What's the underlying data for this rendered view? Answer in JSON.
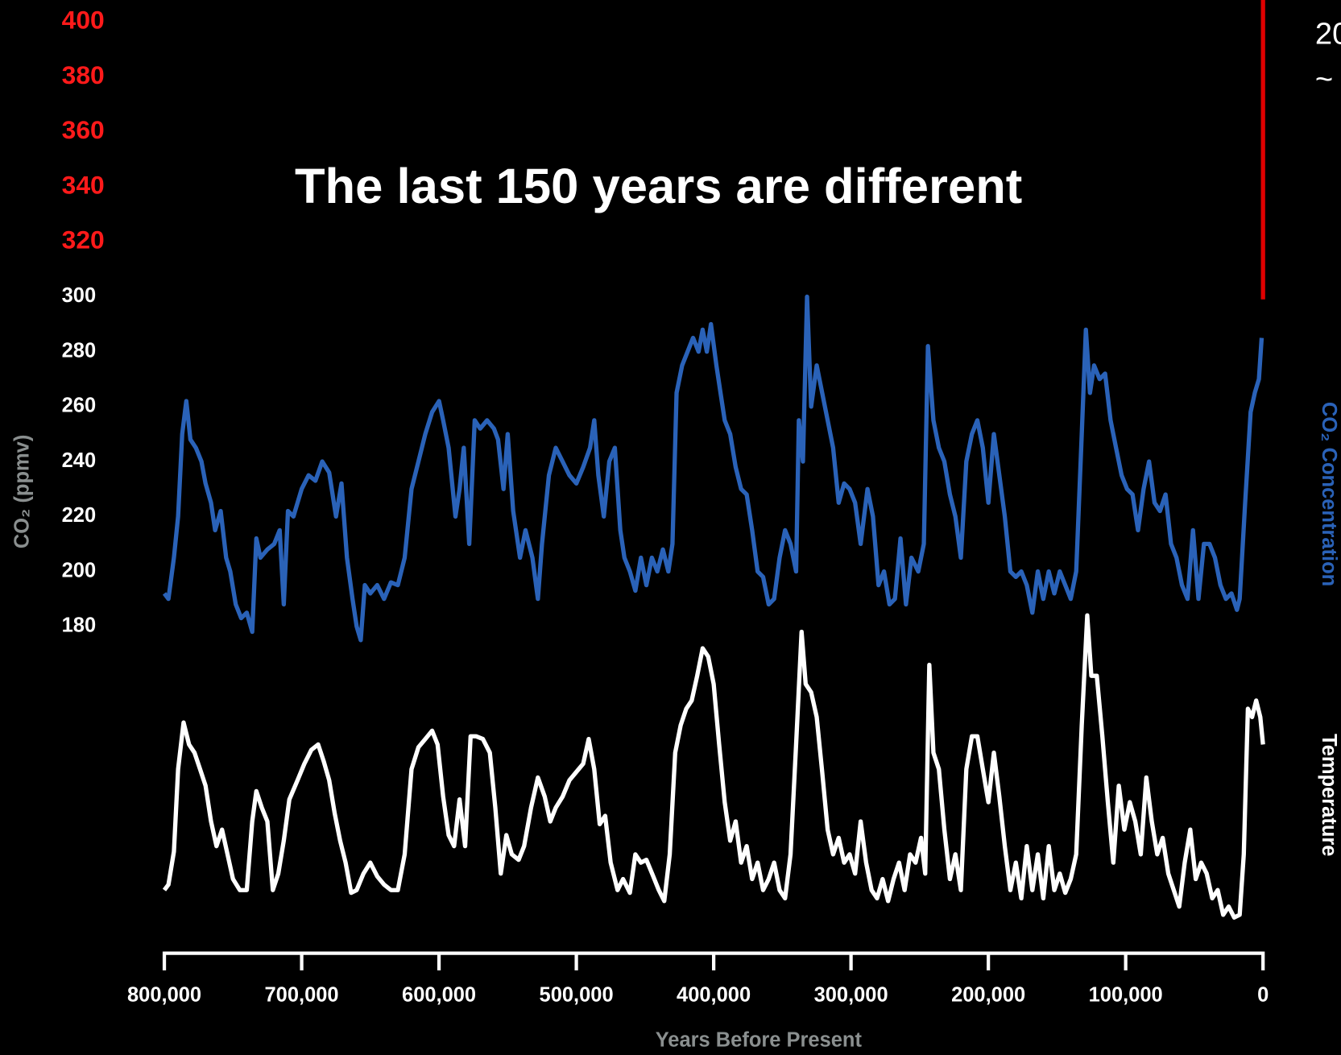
{
  "chart_data": {
    "type": "line",
    "title": "The last 150 years are different",
    "x_label": "Years Before Present",
    "y_label": "CO₂ (ppmv)",
    "xlim": [
      800000,
      0
    ],
    "ylim": [
      61,
      408
    ],
    "xticks": [
      {
        "value": 800000,
        "label": "800,000"
      },
      {
        "value": 700000,
        "label": "700,000"
      },
      {
        "value": 600000,
        "label": "600,000"
      },
      {
        "value": 500000,
        "label": "500,000"
      },
      {
        "value": 400000,
        "label": "400,000"
      },
      {
        "value": 300000,
        "label": "300,000"
      },
      {
        "value": 200000,
        "label": "200,000"
      },
      {
        "value": 100000,
        "label": "100,000"
      },
      0
    ],
    "yticks": [
      180,
      200,
      220,
      240,
      260,
      280,
      300,
      320,
      340,
      360,
      380,
      400
    ],
    "ytick_colors": [
      "#ffffff",
      "#ffffff",
      "#ffffff",
      "#ffffff",
      "#ffffff",
      "#ffffff",
      "#ffffff",
      "#ff1a1a",
      "#ff1a1a",
      "#ff1a1a",
      "#ff1a1a",
      "#ff1a1a"
    ],
    "grid": false,
    "annotations": [
      "20",
      "~"
    ],
    "series": [
      {
        "name": "CO₂ Concentration",
        "color": "#2a62b8",
        "x": [
          800000,
          797000,
          793000,
          790000,
          787000,
          784000,
          781000,
          777000,
          773000,
          770000,
          766000,
          763000,
          759000,
          755000,
          752000,
          748000,
          744000,
          740000,
          736000,
          733000,
          730000,
          725000,
          720000,
          716000,
          713000,
          710000,
          706000,
          700000,
          695000,
          690000,
          685000,
          680000,
          675000,
          671000,
          667000,
          663000,
          660000,
          657000,
          654000,
          650000,
          645000,
          640000,
          635000,
          630000,
          625000,
          620000,
          615000,
          610000,
          605000,
          600000,
          597000,
          593000,
          588000,
          585000,
          582000,
          578000,
          574000,
          570000,
          565000,
          560000,
          557000,
          553000,
          550000,
          546000,
          541000,
          537000,
          532000,
          528000,
          525000,
          520000,
          515000,
          510000,
          505000,
          500000,
          495000,
          490000,
          487000,
          484000,
          480000,
          476000,
          472000,
          468000,
          465000,
          461000,
          457000,
          453000,
          449000,
          445000,
          441000,
          437000,
          433000,
          430000,
          427000,
          423000,
          419000,
          415000,
          411000,
          408000,
          405000,
          402000,
          398000,
          395000,
          392000,
          388000,
          384000,
          380000,
          376000,
          372000,
          368000,
          364000,
          360000,
          356000,
          352000,
          348000,
          344000,
          340000,
          338000,
          335000,
          332000,
          329000,
          325000,
          321000,
          317000,
          313000,
          309000,
          305000,
          301000,
          297000,
          293000,
          288000,
          284000,
          280000,
          276000,
          272000,
          268000,
          264000,
          260000,
          256000,
          251000,
          247000,
          244000,
          240000,
          236000,
          232000,
          228000,
          224000,
          220000,
          216000,
          212000,
          208000,
          204000,
          200000,
          196000,
          192000,
          188000,
          184000,
          180000,
          176000,
          172000,
          168000,
          164000,
          160000,
          156000,
          152000,
          148000,
          144000,
          140000,
          136000,
          132000,
          129000,
          126000,
          123000,
          119000,
          115000,
          111000,
          107000,
          103000,
          99000,
          95000,
          91000,
          87000,
          83000,
          79000,
          75000,
          71000,
          67000,
          63000,
          59000,
          55000,
          51000,
          47000,
          43000,
          39000,
          35000,
          31000,
          27000,
          23000,
          19000,
          17000,
          13000,
          9000,
          6000,
          3000,
          1000
        ],
        "values": [
          192,
          190,
          205,
          220,
          250,
          262,
          248,
          245,
          240,
          232,
          225,
          215,
          222,
          205,
          200,
          188,
          183,
          185,
          178,
          212,
          205,
          208,
          210,
          215,
          188,
          222,
          220,
          230,
          235,
          233,
          240,
          236,
          220,
          232,
          205,
          190,
          180,
          175,
          195,
          192,
          195,
          190,
          196,
          195,
          205,
          230,
          240,
          250,
          258,
          262,
          255,
          245,
          220,
          230,
          245,
          210,
          255,
          252,
          255,
          252,
          248,
          230,
          250,
          222,
          205,
          215,
          205,
          190,
          210,
          235,
          245,
          240,
          235,
          232,
          238,
          245,
          255,
          235,
          220,
          240,
          245,
          215,
          205,
          200,
          193,
          205,
          195,
          205,
          200,
          208,
          200,
          210,
          265,
          275,
          280,
          285,
          280,
          288,
          280,
          290,
          275,
          265,
          255,
          250,
          238,
          230,
          228,
          215,
          200,
          198,
          188,
          190,
          205,
          215,
          210,
          200,
          255,
          240,
          300,
          260,
          275,
          265,
          255,
          245,
          225,
          232,
          230,
          225,
          210,
          230,
          220,
          195,
          200,
          188,
          190,
          212,
          188,
          205,
          200,
          210,
          282,
          255,
          245,
          240,
          228,
          220,
          205,
          240,
          250,
          255,
          245,
          225,
          250,
          235,
          220,
          200,
          198,
          200,
          195,
          185,
          200,
          190,
          200,
          192,
          200,
          195,
          190,
          200,
          250,
          288,
          265,
          275,
          270,
          272,
          255,
          245,
          235,
          230,
          228,
          215,
          230,
          240,
          225,
          222,
          228,
          210,
          205,
          195,
          190,
          215,
          190,
          210,
          210,
          205,
          195,
          190,
          192,
          186,
          190,
          225,
          258,
          265,
          270,
          285
        ]
      },
      {
        "name": "Temperature",
        "color": "#ffffff",
        "x": [
          800000,
          797000,
          793000,
          790000,
          786000,
          782000,
          778000,
          774000,
          770000,
          766000,
          762000,
          758000,
          754000,
          750000,
          745000,
          740000,
          736000,
          733000,
          729000,
          725000,
          721000,
          717000,
          713000,
          709000,
          703000,
          698000,
          693000,
          688000,
          684000,
          680000,
          676000,
          672000,
          668000,
          664000,
          660000,
          655000,
          650000,
          645000,
          640000,
          635000,
          630000,
          625000,
          620000,
          615000,
          610000,
          605000,
          601000,
          597000,
          593000,
          589000,
          585000,
          581000,
          577000,
          573000,
          568000,
          563000,
          559000,
          555000,
          551000,
          547000,
          542000,
          538000,
          533000,
          528000,
          523000,
          519000,
          515000,
          510000,
          505000,
          500000,
          495000,
          491000,
          487000,
          483000,
          479000,
          475000,
          470000,
          466000,
          461000,
          457000,
          453000,
          449000,
          444000,
          440000,
          436000,
          432000,
          428000,
          424000,
          420000,
          416000,
          412000,
          408000,
          404000,
          400000,
          396000,
          392000,
          388000,
          384000,
          380000,
          376000,
          372000,
          368000,
          364000,
          360000,
          356000,
          352000,
          348000,
          344000,
          340000,
          336000,
          333000,
          329000,
          325000,
          321000,
          317000,
          313000,
          309000,
          305000,
          301000,
          297000,
          293000,
          289000,
          285000,
          281000,
          277000,
          273000,
          269000,
          265000,
          261000,
          257000,
          253000,
          249000,
          246000,
          243000,
          240000,
          236000,
          232000,
          228000,
          224000,
          220000,
          216000,
          212000,
          208000,
          204000,
          200000,
          196000,
          192000,
          188000,
          184000,
          180000,
          176000,
          172000,
          168000,
          164000,
          160000,
          156000,
          152000,
          148000,
          144000,
          140000,
          136000,
          132000,
          128000,
          125000,
          121000,
          117000,
          113000,
          109000,
          105000,
          101000,
          97000,
          93000,
          89000,
          85000,
          81000,
          77000,
          73000,
          69000,
          65000,
          61000,
          57000,
          53000,
          49000,
          45000,
          41000,
          37000,
          33000,
          29000,
          25000,
          21000,
          17000,
          14000,
          11000,
          8000,
          5000,
          2000,
          0
        ],
        "values": [
          84,
          86,
          98,
          128,
          145,
          137,
          134,
          128,
          122,
          109,
          100,
          106,
          97,
          88,
          84,
          84,
          109,
          120,
          114,
          109,
          84,
          90,
          102,
          117,
          124,
          130,
          135,
          137,
          131,
          124,
          112,
          102,
          94,
          83,
          84,
          90,
          94,
          89,
          86,
          84,
          84,
          97,
          128,
          136,
          139,
          142,
          137,
          118,
          104,
          100,
          117,
          100,
          140,
          140,
          139,
          134,
          114,
          90,
          104,
          97,
          95,
          100,
          114,
          125,
          118,
          109,
          114,
          118,
          124,
          127,
          130,
          139,
          128,
          108,
          111,
          94,
          84,
          88,
          83,
          97,
          94,
          95,
          89,
          84,
          80,
          97,
          134,
          144,
          150,
          153,
          162,
          172,
          169,
          159,
          137,
          116,
          102,
          109,
          94,
          100,
          88,
          94,
          84,
          88,
          94,
          84,
          81,
          97,
          137,
          178,
          159,
          156,
          147,
          127,
          106,
          97,
          103,
          94,
          97,
          90,
          109,
          94,
          84,
          81,
          88,
          80,
          88,
          94,
          84,
          97,
          94,
          103,
          90,
          166,
          134,
          128,
          106,
          88,
          97,
          84,
          128,
          140,
          140,
          128,
          116,
          134,
          118,
          100,
          84,
          94,
          81,
          100,
          84,
          97,
          81,
          100,
          84,
          90,
          83,
          88,
          97,
          144,
          184,
          162,
          162,
          140,
          116,
          94,
          122,
          106,
          116,
          109,
          97,
          125,
          109,
          97,
          103,
          90,
          84,
          78,
          94,
          106,
          88,
          94,
          90,
          81,
          84,
          75,
          78,
          74,
          75,
          97,
          150,
          147,
          153,
          147,
          137
        ]
      },
      {
        "color": "#e00000",
        "x": [
          0,
          0
        ],
        "values": [
          299,
          408
        ]
      }
    ]
  }
}
